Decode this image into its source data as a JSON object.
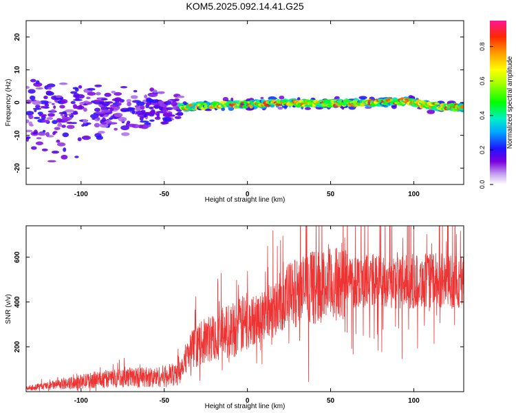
{
  "title": "KOM5.2025.092.14.41.G25",
  "chart_data": [
    {
      "type": "heatmap",
      "xlabel": "Height of straight line (km)",
      "ylabel": "Frequency (Hz)",
      "xlim": [
        -133,
        130
      ],
      "ylim": [
        -25,
        25
      ],
      "xticks": [
        -100,
        -50,
        0,
        50,
        100
      ],
      "yticks": [
        -20,
        -10,
        0,
        10,
        20
      ],
      "colorbar": {
        "label": "Normalized spectral amplitude",
        "range": [
          0,
          0.95
        ],
        "ticks": [
          0.0,
          0.2,
          0.4,
          0.6,
          0.8
        ],
        "tick_labels": [
          "0.0",
          "0.2",
          "0.4",
          "0.6",
          "0.8"
        ]
      },
      "ridge": [
        {
          "x": -133,
          "y": -6
        },
        {
          "x": -120,
          "y": -5
        },
        {
          "x": -100,
          "y": -3.5
        },
        {
          "x": -80,
          "y": -2.5
        },
        {
          "x": -60,
          "y": -2
        },
        {
          "x": -40,
          "y": -1.5
        },
        {
          "x": -20,
          "y": -0.8
        },
        {
          "x": 0,
          "y": -0.5
        },
        {
          "x": 20,
          "y": 0
        },
        {
          "x": 40,
          "y": -0.3
        },
        {
          "x": 60,
          "y": -0.1
        },
        {
          "x": 80,
          "y": 0
        },
        {
          "x": 95,
          "y": 0.5
        },
        {
          "x": 110,
          "y": -1
        },
        {
          "x": 130,
          "y": -1.5
        }
      ]
    },
    {
      "type": "line",
      "xlabel": "Height of straight line (km)",
      "ylabel": "SNR (v/v)",
      "xlim": [
        -133,
        130
      ],
      "ylim": [
        0,
        740
      ],
      "xticks": [
        -100,
        -50,
        0,
        50,
        100
      ],
      "yticks": [
        200,
        400,
        600
      ],
      "series_color": "#ee3333",
      "envelope": [
        {
          "x": -133,
          "y": 15
        },
        {
          "x": -110,
          "y": 35
        },
        {
          "x": -90,
          "y": 55
        },
        {
          "x": -70,
          "y": 65
        },
        {
          "x": -55,
          "y": 65
        },
        {
          "x": -45,
          "y": 75
        },
        {
          "x": -40,
          "y": 110
        },
        {
          "x": -35,
          "y": 180
        },
        {
          "x": -25,
          "y": 230
        },
        {
          "x": -15,
          "y": 260
        },
        {
          "x": -5,
          "y": 290
        },
        {
          "x": 5,
          "y": 320
        },
        {
          "x": 15,
          "y": 370
        },
        {
          "x": 25,
          "y": 430
        },
        {
          "x": 35,
          "y": 460
        },
        {
          "x": 45,
          "y": 470
        },
        {
          "x": 55,
          "y": 480
        },
        {
          "x": 65,
          "y": 500
        },
        {
          "x": 75,
          "y": 495
        },
        {
          "x": 85,
          "y": 490
        },
        {
          "x": 95,
          "y": 490
        },
        {
          "x": 110,
          "y": 495
        },
        {
          "x": 130,
          "y": 490
        }
      ]
    }
  ]
}
